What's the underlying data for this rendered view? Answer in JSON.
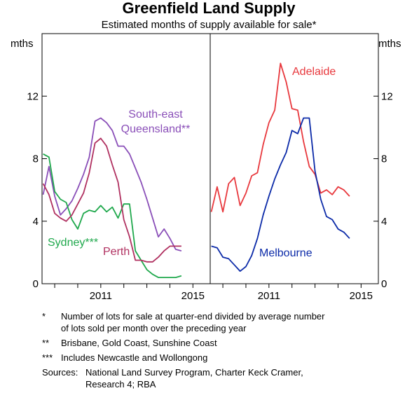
{
  "title": "Greenfield Land Supply",
  "subtitle": "Estimated months of supply available for sale*",
  "colors": {
    "sydney": "#1fa84c",
    "perth": "#b03060",
    "seq": "#8a4fb8",
    "adelaide": "#e8383d",
    "melbourne": "#0b2aa8"
  },
  "chart_data": [
    {
      "type": "line",
      "panel": "left",
      "ylabel_left": "mths",
      "ylim": [
        0,
        16
      ],
      "yticks": [
        0,
        4,
        8,
        12
      ],
      "xlim": [
        2008.45,
        2015.75
      ],
      "xticks": [
        2011,
        2015
      ],
      "grid": false,
      "series": [
        {
          "name": "South-east Queensland**",
          "key": "seq",
          "label_lines": [
            "South-east",
            "Queensland**"
          ],
          "x": [
            2008.5,
            2008.75,
            2009.0,
            2009.25,
            2009.5,
            2009.75,
            2010.0,
            2010.25,
            2010.5,
            2010.75,
            2011.0,
            2011.25,
            2011.5,
            2011.75,
            2012.0,
            2012.25,
            2012.5,
            2012.75,
            2013.0,
            2013.25,
            2013.5,
            2013.75,
            2014.0,
            2014.25,
            2014.5
          ],
          "y": [
            5.7,
            7.5,
            5.6,
            4.4,
            4.8,
            5.3,
            6.1,
            7.0,
            8.1,
            10.4,
            10.6,
            10.3,
            9.8,
            8.8,
            8.8,
            8.3,
            7.4,
            6.5,
            5.4,
            4.2,
            3.0,
            3.5,
            2.9,
            2.2,
            2.1
          ]
        },
        {
          "name": "Sydney***",
          "key": "sydney",
          "label_lines": [
            "Sydney***"
          ],
          "x": [
            2008.5,
            2008.75,
            2009.0,
            2009.25,
            2009.5,
            2009.75,
            2010.0,
            2010.25,
            2010.5,
            2010.75,
            2011.0,
            2011.25,
            2011.5,
            2011.75,
            2012.0,
            2012.25,
            2012.5,
            2012.75,
            2013.0,
            2013.25,
            2013.5,
            2013.75,
            2014.0,
            2014.25,
            2014.5
          ],
          "y": [
            8.3,
            8.1,
            5.9,
            5.4,
            5.2,
            4.1,
            3.5,
            4.5,
            4.7,
            4.6,
            5.0,
            4.6,
            4.9,
            4.2,
            5.1,
            5.1,
            2.1,
            1.5,
            0.9,
            0.6,
            0.4,
            0.4,
            0.4,
            0.4,
            0.5
          ]
        },
        {
          "name": "Perth",
          "key": "perth",
          "label_lines": [
            "Perth"
          ],
          "x": [
            2008.5,
            2008.75,
            2009.0,
            2009.25,
            2009.5,
            2009.75,
            2010.0,
            2010.25,
            2010.5,
            2010.75,
            2011.0,
            2011.25,
            2011.5,
            2011.75,
            2012.0,
            2012.25,
            2012.5,
            2012.75,
            2013.0,
            2013.25,
            2013.5,
            2013.75,
            2014.0,
            2014.25,
            2014.5
          ],
          "y": [
            6.4,
            5.7,
            4.5,
            4.2,
            4.0,
            4.4,
            5.1,
            5.8,
            7.1,
            9.0,
            9.3,
            8.8,
            7.6,
            6.5,
            4.1,
            3.0,
            1.5,
            1.5,
            1.4,
            1.4,
            1.7,
            2.1,
            2.4,
            2.4,
            2.4
          ]
        }
      ]
    },
    {
      "type": "line",
      "panel": "right",
      "ylabel_right": "mths",
      "ylim": [
        0,
        16
      ],
      "yticks": [
        0,
        4,
        8,
        12
      ],
      "xlim": [
        2008.45,
        2015.75
      ],
      "xticks": [
        2011,
        2015
      ],
      "grid": false,
      "series": [
        {
          "name": "Adelaide",
          "key": "adelaide",
          "label_lines": [
            "Adelaide"
          ],
          "x": [
            2008.5,
            2008.75,
            2009.0,
            2009.25,
            2009.5,
            2009.75,
            2010.0,
            2010.25,
            2010.5,
            2010.75,
            2011.0,
            2011.25,
            2011.5,
            2011.75,
            2012.0,
            2012.25,
            2012.5,
            2012.75,
            2013.0,
            2013.25,
            2013.5,
            2013.75,
            2014.0,
            2014.25,
            2014.5
          ],
          "y": [
            4.6,
            6.2,
            4.6,
            6.4,
            6.8,
            5.0,
            5.8,
            6.9,
            7.1,
            8.9,
            10.3,
            11.1,
            14.1,
            12.9,
            11.2,
            11.1,
            9.1,
            7.5,
            7.0,
            5.8,
            6.0,
            5.7,
            6.2,
            6.0,
            5.6
          ]
        },
        {
          "name": "Melbourne",
          "key": "melbourne",
          "label_lines": [
            "Melbourne"
          ],
          "x": [
            2008.5,
            2008.75,
            2009.0,
            2009.25,
            2009.5,
            2009.75,
            2010.0,
            2010.25,
            2010.5,
            2010.75,
            2011.0,
            2011.25,
            2011.5,
            2011.75,
            2012.0,
            2012.25,
            2012.5,
            2012.75,
            2013.0,
            2013.25,
            2013.5,
            2013.75,
            2014.0,
            2014.25,
            2014.5
          ],
          "y": [
            2.4,
            2.3,
            1.7,
            1.6,
            1.2,
            0.8,
            1.1,
            1.8,
            2.9,
            4.4,
            5.6,
            6.7,
            7.6,
            8.4,
            9.8,
            9.6,
            10.6,
            10.6,
            7.2,
            5.4,
            4.3,
            4.1,
            3.5,
            3.3,
            2.9
          ]
        }
      ]
    }
  ],
  "footnotes": [
    {
      "mark": "*",
      "lines": [
        "Number of lots for sale at quarter-end divided by average number",
        "of lots sold per month over the preceding year"
      ]
    },
    {
      "mark": "**",
      "lines": [
        "Brisbane, Gold Coast, Sunshine Coast"
      ]
    },
    {
      "mark": "***",
      "lines": [
        "Includes Newcastle and Wollongong"
      ]
    }
  ],
  "sources": {
    "label": "Sources:",
    "lines": [
      "National Land Survey Program, Charter Keck Cramer,",
      "Research 4; RBA"
    ]
  }
}
